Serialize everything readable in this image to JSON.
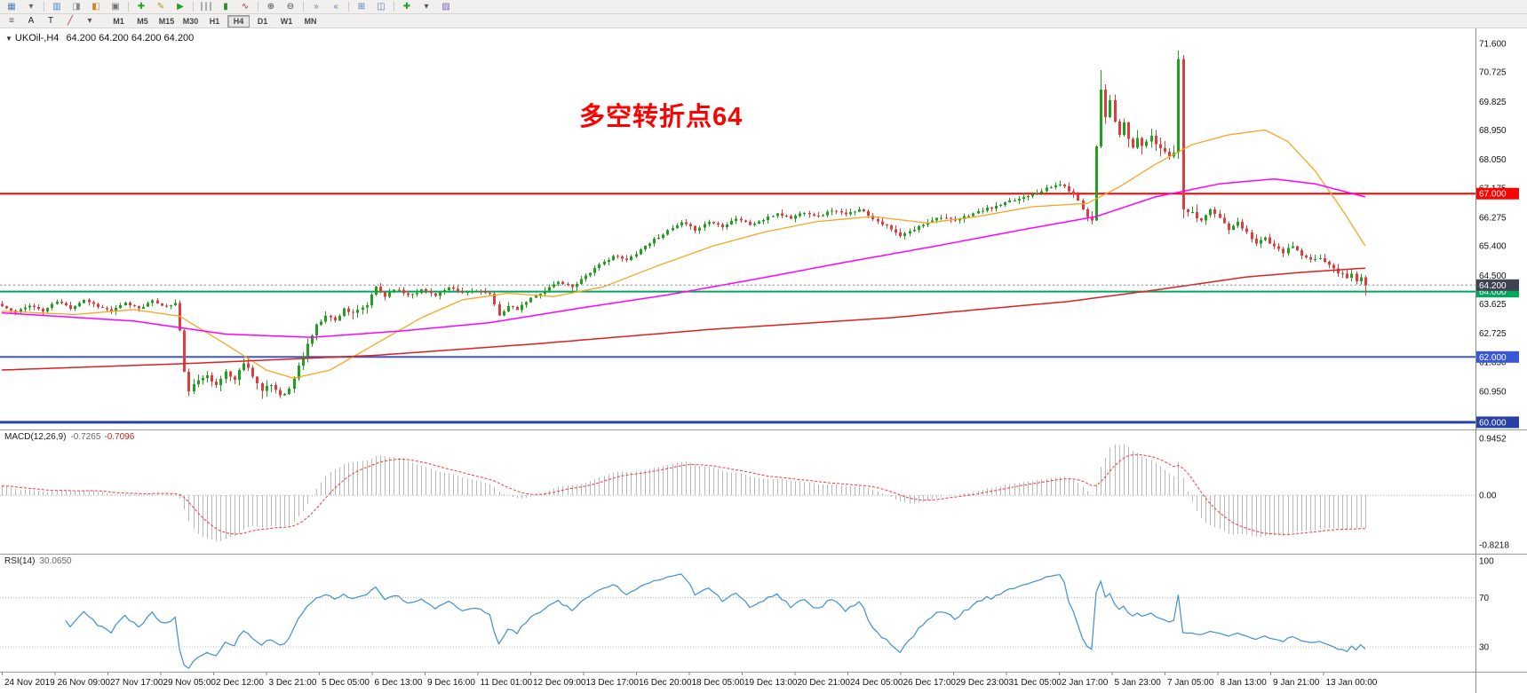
{
  "toolbar_main": {
    "items": [
      {
        "n": "new-chart-icon",
        "g": "▦",
        "c": "#4f81b8"
      },
      {
        "n": "profiles-icon",
        "g": "▾",
        "c": "#666666"
      },
      {
        "sep": true
      },
      {
        "n": "market-watch-icon",
        "g": "▥",
        "c": "#3f7fbf"
      },
      {
        "n": "data-window-icon",
        "g": "◨",
        "c": "#8a8a8a"
      },
      {
        "n": "navigator-icon",
        "g": "◧",
        "c": "#c98a2b"
      },
      {
        "n": "terminal-icon",
        "g": "▣",
        "c": "#6f6f6f"
      },
      {
        "sep": true
      },
      {
        "n": "new-order-icon",
        "g": "✚",
        "c": "#1fa41f"
      },
      {
        "n": "metaeditor-icon",
        "g": "✎",
        "c": "#b8902f"
      },
      {
        "n": "autotrading-icon",
        "g": "▶",
        "c": "#1fa41f"
      },
      {
        "sep": true
      },
      {
        "n": "bars-chart-icon",
        "g": "∣∣∣",
        "c": "#444444"
      },
      {
        "n": "candlestick-chart-icon",
        "g": "▮",
        "c": "#2a8a2a"
      },
      {
        "n": "line-chart-icon",
        "g": "∿",
        "c": "#b03030"
      },
      {
        "sep": true
      },
      {
        "n": "zoom-in-icon",
        "g": "⊕",
        "c": "#444444"
      },
      {
        "n": "zoom-out-icon",
        "g": "⊖",
        "c": "#444444"
      },
      {
        "sep": true
      },
      {
        "n": "auto-scroll-icon",
        "g": "»",
        "c": "#3f7fbf"
      },
      {
        "n": "chart-shift-icon",
        "g": "«",
        "c": "#3f7fbf"
      },
      {
        "sep": true
      },
      {
        "n": "tile-windows-icon",
        "g": "⊞",
        "c": "#4f81b8"
      },
      {
        "n": "cascade-windows-icon",
        "g": "◫",
        "c": "#4f81b8"
      },
      {
        "sep": true
      },
      {
        "n": "indicators-icon",
        "g": "✚",
        "c": "#1fa41f"
      },
      {
        "n": "periods-dropdown-icon",
        "g": "▾",
        "c": "#555555"
      },
      {
        "n": "templates-icon",
        "g": "▨",
        "c": "#7a5fb5"
      }
    ]
  },
  "toolbar_tools": {
    "items": [
      {
        "n": "objects-list-icon",
        "g": "≡",
        "c": "#555555"
      },
      {
        "n": "text-label-icon",
        "g": "A",
        "c": "#222222"
      },
      {
        "n": "text-icon",
        "g": "T",
        "c": "#222222"
      },
      {
        "n": "trendline-icon",
        "g": "╱",
        "c": "#b03030"
      },
      {
        "n": "drawing-tools-dropdown-icon",
        "g": "▾",
        "c": "#555555"
      }
    ],
    "timeframes": {
      "options": [
        "M1",
        "M5",
        "M15",
        "M30",
        "H1",
        "H4",
        "D1",
        "W1",
        "MN"
      ],
      "active": "H4"
    }
  },
  "chart_data": {
    "type": "candlestick",
    "symbol_period": "UKOil-,H4",
    "ohlc_text": "64.200 64.200 64.200 64.200",
    "bars_count": 300,
    "final_close": 64.2,
    "seed": 11,
    "colors": {
      "up": "#1fa11f",
      "down": "#e23b3b"
    },
    "price_axis": {
      "min": 59.78,
      "max": 72.06,
      "ticks": [
        71.6,
        70.725,
        69.825,
        68.95,
        68.05,
        67.175,
        66.275,
        65.4,
        64.5,
        63.625,
        62.725,
        61.85,
        60.95,
        60.075
      ]
    },
    "close_anchors": [
      [
        0,
        63.55
      ],
      [
        3,
        63.35
      ],
      [
        6,
        63.6
      ],
      [
        9,
        63.4
      ],
      [
        12,
        63.7
      ],
      [
        15,
        63.5
      ],
      [
        18,
        63.75
      ],
      [
        21,
        63.55
      ],
      [
        24,
        63.4
      ],
      [
        27,
        63.65
      ],
      [
        30,
        63.5
      ],
      [
        33,
        63.7
      ],
      [
        36,
        63.55
      ],
      [
        38,
        63.65
      ],
      [
        39,
        62.8
      ],
      [
        40,
        61.5
      ],
      [
        41,
        61.0
      ],
      [
        43,
        61.25
      ],
      [
        45,
        61.5
      ],
      [
        47,
        61.1
      ],
      [
        49,
        61.55
      ],
      [
        51,
        61.3
      ],
      [
        53,
        61.85
      ],
      [
        55,
        61.45
      ],
      [
        57,
        60.95
      ],
      [
        59,
        61.15
      ],
      [
        61,
        60.85
      ],
      [
        63,
        61.0
      ],
      [
        65,
        61.7
      ],
      [
        67,
        62.4
      ],
      [
        69,
        62.95
      ],
      [
        71,
        63.3
      ],
      [
        73,
        63.1
      ],
      [
        75,
        63.5
      ],
      [
        77,
        63.3
      ],
      [
        80,
        63.6
      ],
      [
        82,
        64.15
      ],
      [
        84,
        63.85
      ],
      [
        86,
        64.1
      ],
      [
        89,
        63.9
      ],
      [
        92,
        64.05
      ],
      [
        95,
        63.9
      ],
      [
        98,
        64.1
      ],
      [
        101,
        63.95
      ],
      [
        104,
        64.05
      ],
      [
        107,
        63.9
      ],
      [
        109,
        63.3
      ],
      [
        111,
        63.55
      ],
      [
        113,
        63.45
      ],
      [
        116,
        63.8
      ],
      [
        119,
        64.05
      ],
      [
        122,
        64.3
      ],
      [
        125,
        64.15
      ],
      [
        128,
        64.5
      ],
      [
        131,
        64.8
      ],
      [
        134,
        65.1
      ],
      [
        137,
        64.95
      ],
      [
        140,
        65.3
      ],
      [
        143,
        65.6
      ],
      [
        146,
        65.85
      ],
      [
        149,
        66.1
      ],
      [
        152,
        65.9
      ],
      [
        155,
        66.15
      ],
      [
        158,
        66.0
      ],
      [
        161,
        66.25
      ],
      [
        164,
        66.05
      ],
      [
        167,
        66.2
      ],
      [
        170,
        66.4
      ],
      [
        173,
        66.25
      ],
      [
        176,
        66.45
      ],
      [
        179,
        66.3
      ],
      [
        182,
        66.5
      ],
      [
        185,
        66.35
      ],
      [
        188,
        66.55
      ],
      [
        191,
        66.25
      ],
      [
        194,
        66.0
      ],
      [
        197,
        65.7
      ],
      [
        200,
        65.9
      ],
      [
        203,
        66.15
      ],
      [
        206,
        66.3
      ],
      [
        209,
        66.15
      ],
      [
        212,
        66.35
      ],
      [
        215,
        66.5
      ],
      [
        218,
        66.6
      ],
      [
        221,
        66.75
      ],
      [
        224,
        66.9
      ],
      [
        227,
        67.05
      ],
      [
        230,
        67.2
      ],
      [
        232,
        67.3
      ],
      [
        234,
        67.1
      ],
      [
        236,
        66.8
      ],
      [
        238,
        66.3
      ],
      [
        239,
        66.2
      ],
      [
        240,
        68.5
      ],
      [
        241,
        70.2
      ],
      [
        242,
        69.4
      ],
      [
        243,
        69.8
      ],
      [
        244,
        69.2
      ],
      [
        245,
        68.8
      ],
      [
        246,
        69.1
      ],
      [
        247,
        68.7
      ],
      [
        248,
        68.4
      ],
      [
        249,
        68.7
      ],
      [
        250,
        68.5
      ],
      [
        252,
        68.7
      ],
      [
        254,
        68.4
      ],
      [
        256,
        68.2
      ],
      [
        257,
        68.3
      ],
      [
        258,
        71.1
      ],
      [
        259,
        66.6
      ],
      [
        261,
        66.4
      ],
      [
        263,
        66.2
      ],
      [
        265,
        66.5
      ],
      [
        267,
        66.25
      ],
      [
        269,
        65.9
      ],
      [
        271,
        66.1
      ],
      [
        273,
        65.8
      ],
      [
        275,
        65.5
      ],
      [
        277,
        65.65
      ],
      [
        279,
        65.35
      ],
      [
        281,
        65.2
      ],
      [
        283,
        65.4
      ],
      [
        285,
        65.1
      ],
      [
        287,
        64.95
      ],
      [
        289,
        65.05
      ],
      [
        291,
        64.8
      ],
      [
        293,
        64.6
      ],
      [
        295,
        64.45
      ],
      [
        296,
        64.55
      ],
      [
        297,
        64.3
      ],
      [
        298,
        64.45
      ],
      [
        299,
        64.2
      ]
    ],
    "volatility_zones": [
      [
        0,
        38,
        1.0
      ],
      [
        39,
        80,
        1.8
      ],
      [
        81,
        237,
        1.0
      ],
      [
        238,
        262,
        2.3
      ],
      [
        263,
        299,
        1.2
      ]
    ],
    "wick_overrides": {
      "57": {
        "low": 60.72
      },
      "61": {
        "low": 60.74
      },
      "241": {
        "high": 70.78
      },
      "258": {
        "high": 71.38
      },
      "259": {
        "low": 66.25
      },
      "299": {
        "low": 63.88
      }
    },
    "moving_averages": [
      {
        "name": "ma-fast-orange",
        "color": "#f5a623",
        "width": 1.3,
        "anchors": [
          [
            0,
            63.4
          ],
          [
            16,
            63.3
          ],
          [
            29,
            63.45
          ],
          [
            39,
            63.25
          ],
          [
            49,
            62.4
          ],
          [
            58,
            61.6
          ],
          [
            64,
            61.35
          ],
          [
            72,
            61.6
          ],
          [
            82,
            62.4
          ],
          [
            92,
            63.2
          ],
          [
            101,
            63.75
          ],
          [
            111,
            63.95
          ],
          [
            121,
            63.85
          ],
          [
            132,
            64.15
          ],
          [
            144,
            64.8
          ],
          [
            156,
            65.4
          ],
          [
            168,
            65.85
          ],
          [
            179,
            66.15
          ],
          [
            191,
            66.3
          ],
          [
            203,
            66.1
          ],
          [
            214,
            66.3
          ],
          [
            226,
            66.6
          ],
          [
            238,
            66.7
          ],
          [
            245,
            67.2
          ],
          [
            253,
            67.9
          ],
          [
            261,
            68.5
          ],
          [
            269,
            68.8
          ],
          [
            277,
            68.95
          ],
          [
            282,
            68.6
          ],
          [
            288,
            67.7
          ],
          [
            294,
            66.5
          ],
          [
            299,
            65.4
          ]
        ]
      },
      {
        "name": "ma-mid-magenta",
        "color": "#ff00ff",
        "width": 1.5,
        "anchors": [
          [
            0,
            63.35
          ],
          [
            29,
            63.1
          ],
          [
            49,
            62.7
          ],
          [
            68,
            62.6
          ],
          [
            88,
            62.8
          ],
          [
            107,
            63.05
          ],
          [
            127,
            63.5
          ],
          [
            146,
            63.9
          ],
          [
            166,
            64.4
          ],
          [
            185,
            64.9
          ],
          [
            205,
            65.4
          ],
          [
            224,
            65.9
          ],
          [
            240,
            66.3
          ],
          [
            253,
            66.9
          ],
          [
            267,
            67.3
          ],
          [
            279,
            67.45
          ],
          [
            288,
            67.3
          ],
          [
            299,
            66.9
          ]
        ]
      },
      {
        "name": "ma-slow-red",
        "color": "#dd2020",
        "width": 1.5,
        "anchors": [
          [
            0,
            61.6
          ],
          [
            41,
            61.8
          ],
          [
            82,
            62.05
          ],
          [
            117,
            62.4
          ],
          [
            156,
            62.85
          ],
          [
            195,
            63.2
          ],
          [
            214,
            63.45
          ],
          [
            234,
            63.7
          ],
          [
            253,
            64.05
          ],
          [
            273,
            64.45
          ],
          [
            286,
            64.6
          ],
          [
            299,
            64.72
          ]
        ]
      }
    ],
    "hlines": [
      {
        "price": 67.0,
        "label": "67.000",
        "color": "#ff0000",
        "width": 2
      },
      {
        "price": 64.0,
        "label": "64.000",
        "color": "#00a85e",
        "width": 2
      },
      {
        "price": 62.0,
        "label": "62.000",
        "color": "#3a57d7",
        "width": 2
      },
      {
        "price": 60.0,
        "label": "60.000",
        "color": "#2741a6",
        "width": 3
      }
    ],
    "current_price": {
      "price": 64.2,
      "label": "64.200",
      "color": "#3f4450"
    },
    "annotation": {
      "text": "多空转折点64",
      "color": "#ff0000"
    },
    "macd": {
      "label": "MACD(12,26,9)",
      "value_main": "-0.7265",
      "value_signal": "-0.7096",
      "fast": 12,
      "slow": 26,
      "signal": 9,
      "axis_max": 0.9452,
      "axis_min": -0.8218,
      "ticks": [
        "0.9452",
        "0.00",
        "-0.8218"
      ],
      "histogram_color": "#b9b9b9",
      "signal_color": "#ff3333"
    },
    "rsi": {
      "label": "RSI(14)",
      "value": "30.0650",
      "period": 14,
      "levels": [
        100,
        70,
        30
      ],
      "line_color": "#3e8fd0"
    },
    "time_labels": [
      "24 Nov 2019",
      "26 Nov 09:00",
      "27 Nov 17:00",
      "29 Nov 05:00",
      "2 Dec 12:00",
      "3 Dec 21:00",
      "5 Dec 05:00",
      "6 Dec 13:00",
      "9 Dec 16:00",
      "11 Dec 01:00",
      "12 Dec 09:00",
      "13 Dec 17:00",
      "16 Dec 20:00",
      "18 Dec 05:00",
      "19 Dec 13:00",
      "20 Dec 21:00",
      "24 Dec 05:00",
      "26 Dec 17:00",
      "29 Dec 23:00",
      "31 Dec 05:00",
      "2 Jan 17:00",
      "5 Jan 23:00",
      "7 Jan 05:00",
      "8 Jan 13:00",
      "9 Jan 21:00",
      "13 Jan 00:00"
    ]
  }
}
